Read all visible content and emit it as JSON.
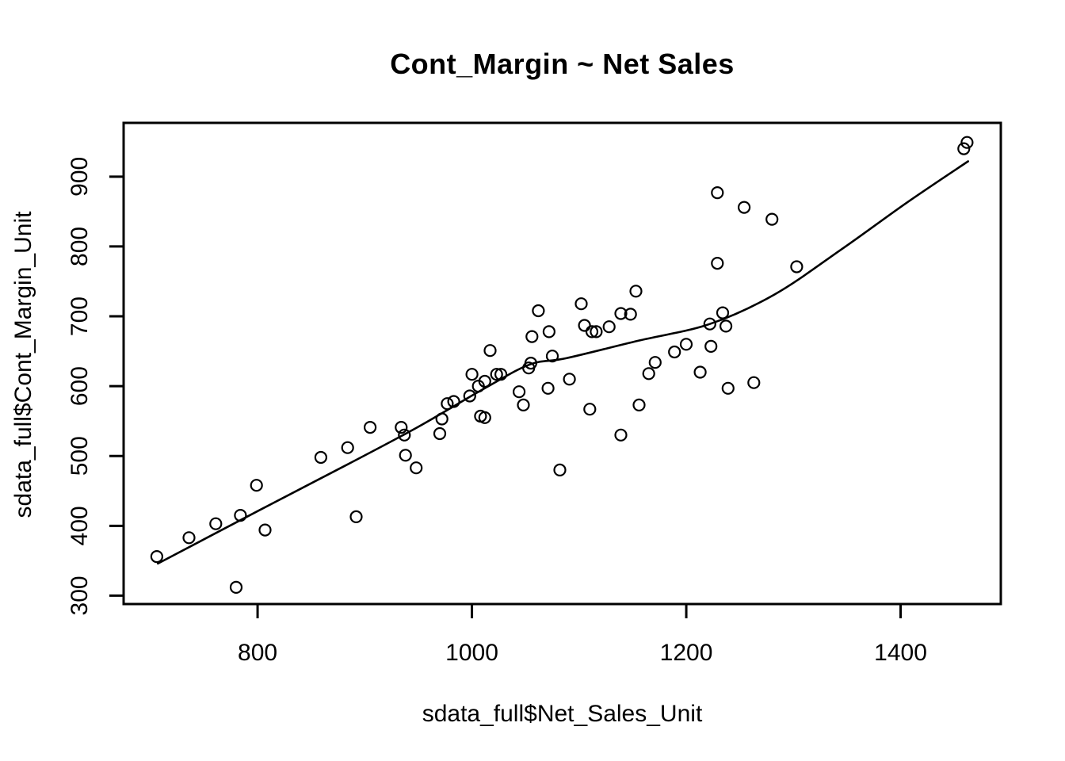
{
  "chart_data": {
    "type": "scatter",
    "title": "Cont_Margin ~ Net Sales",
    "xlabel": "sdata_full$Net_Sales_Unit",
    "ylabel": "sdata_full$Cont_Margin_Unit",
    "xlim": [
      675,
      1493.5
    ],
    "ylim": [
      288,
      977
    ],
    "xticks": [
      800,
      1000,
      1200,
      1400
    ],
    "yticks": [
      300,
      400,
      500,
      600,
      700,
      800,
      900
    ],
    "grid": false,
    "legend": null,
    "marker": {
      "shape": "open-circle",
      "radius_px": 7
    },
    "colors": {
      "background": "#ffffff",
      "foreground": "#000000"
    },
    "points": [
      [
        706,
        356
      ],
      [
        736,
        383
      ],
      [
        761,
        403
      ],
      [
        780,
        312
      ],
      [
        784,
        415
      ],
      [
        799,
        458
      ],
      [
        807,
        394
      ],
      [
        859,
        498
      ],
      [
        884,
        512
      ],
      [
        892,
        413
      ],
      [
        905,
        541
      ],
      [
        934,
        541
      ],
      [
        937,
        530
      ],
      [
        938,
        501
      ],
      [
        948,
        483
      ],
      [
        970,
        532
      ],
      [
        972,
        553
      ],
      [
        977,
        575
      ],
      [
        983,
        578
      ],
      [
        998,
        586
      ],
      [
        1000,
        617
      ],
      [
        1006,
        600
      ],
      [
        1008,
        557
      ],
      [
        1012,
        555
      ],
      [
        1012,
        607
      ],
      [
        1017,
        651
      ],
      [
        1023,
        617
      ],
      [
        1027,
        617
      ],
      [
        1044,
        592
      ],
      [
        1048,
        573
      ],
      [
        1053,
        626
      ],
      [
        1055,
        633
      ],
      [
        1056,
        671
      ],
      [
        1062,
        708
      ],
      [
        1071,
        597
      ],
      [
        1072,
        678
      ],
      [
        1075,
        643
      ],
      [
        1082,
        480
      ],
      [
        1091,
        610
      ],
      [
        1102,
        718
      ],
      [
        1105,
        687
      ],
      [
        1110,
        567
      ],
      [
        1112,
        678
      ],
      [
        1116,
        678
      ],
      [
        1128,
        685
      ],
      [
        1139,
        530
      ],
      [
        1139,
        704
      ],
      [
        1148,
        703
      ],
      [
        1153,
        736
      ],
      [
        1156,
        573
      ],
      [
        1165,
        618
      ],
      [
        1171,
        634
      ],
      [
        1189,
        649
      ],
      [
        1200,
        660
      ],
      [
        1213,
        620
      ],
      [
        1222,
        689
      ],
      [
        1223,
        657
      ],
      [
        1229,
        776
      ],
      [
        1229,
        877
      ],
      [
        1234,
        705
      ],
      [
        1237,
        686
      ],
      [
        1239,
        597
      ],
      [
        1254,
        856
      ],
      [
        1263,
        605
      ],
      [
        1280,
        839
      ],
      [
        1303,
        771
      ],
      [
        1459,
        940
      ],
      [
        1462,
        949
      ]
    ],
    "smooth_line": [
      [
        707,
        346
      ],
      [
        800,
        421
      ],
      [
        884,
        488
      ],
      [
        949,
        541
      ],
      [
        1012,
        597
      ],
      [
        1054,
        631
      ],
      [
        1088,
        640
      ],
      [
        1155,
        665
      ],
      [
        1222,
        689
      ],
      [
        1282,
        731
      ],
      [
        1344,
        795
      ],
      [
        1406,
        863
      ],
      [
        1463,
        922
      ]
    ]
  }
}
